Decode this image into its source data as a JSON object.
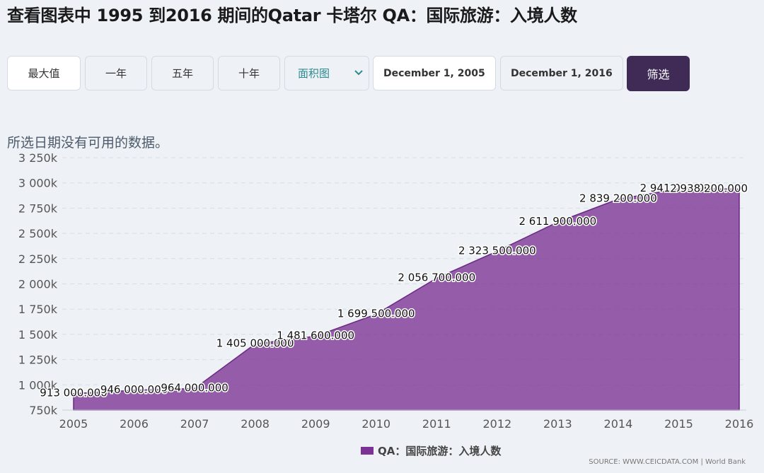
{
  "page_title": "查看图表中 1995 到2016 期间的Qatar 卡塔尔 QA：国际旅游：入境人数",
  "toolbar": {
    "range_buttons": [
      "最大值",
      "一年",
      "五年",
      "十年"
    ],
    "chart_type_label": "面积图",
    "date_from": "December 1, 2005",
    "date_to": "December 1, 2016",
    "filter_label": "筛选"
  },
  "no_data_message": "所选日期没有可用的数据。",
  "legend_label": "QA：国际旅游：入境人数",
  "source_text": "SOURCE: WWW.CEICDATA.COM | World Bank",
  "colors": {
    "area": "#7b3294",
    "accent": "#3f2b56",
    "teal": "#2a8a8f"
  },
  "chart_data": {
    "type": "area",
    "title": "",
    "xlabel": "",
    "ylabel": "",
    "ylim": [
      750000,
      3250000
    ],
    "y_ticks": [
      750000,
      1000000,
      1250000,
      1500000,
      1750000,
      2000000,
      2250000,
      2500000,
      2750000,
      3000000,
      3250000
    ],
    "y_tick_labels": [
      "750k",
      "1 000k",
      "1 250k",
      "1 500k",
      "1 750k",
      "2 000k",
      "2 250k",
      "2 500k",
      "2 750k",
      "3 000k",
      "3 250k"
    ],
    "x": [
      2005,
      2006,
      2007,
      2008,
      2009,
      2010,
      2011,
      2012,
      2013,
      2014,
      2015,
      2016
    ],
    "x_tick_labels": [
      "2005",
      "2006",
      "2007",
      "2008",
      "2009",
      "2010",
      "2011",
      "2012",
      "2013",
      "2014",
      "2015",
      "2016"
    ],
    "series": [
      {
        "name": "QA：国际旅游：入境人数",
        "values": [
          913000,
          946000,
          964000,
          1405000,
          1481600,
          1699500,
          2056700,
          2323500,
          2611900,
          2839200,
          2941000,
          2938200
        ],
        "data_labels": [
          "913 000.000",
          "946 000.000",
          "964 000.000",
          "1 405 000.000",
          "1 481 600.000",
          "1 699 500.000",
          "2 056 700.000",
          "2 323 500.000",
          "2 611 900.000",
          "2 839 200.000",
          "2 941 000.000",
          "2 938 200.000"
        ]
      }
    ],
    "grid": true,
    "legend_position": "bottom"
  }
}
